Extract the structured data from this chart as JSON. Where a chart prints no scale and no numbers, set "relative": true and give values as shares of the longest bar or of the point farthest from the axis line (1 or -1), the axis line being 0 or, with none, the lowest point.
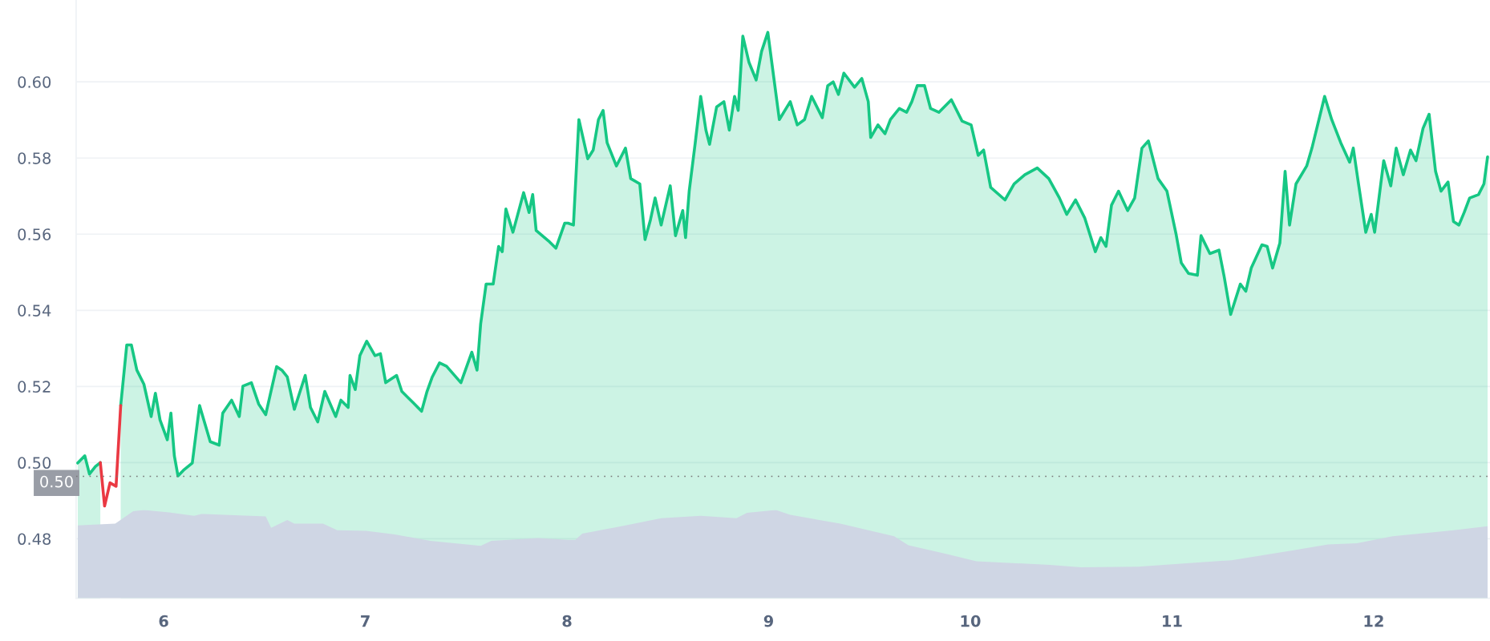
{
  "chart_data": [
    {
      "type": "line",
      "x": [
        5.574,
        5.609,
        5.632,
        5.662,
        5.686,
        5.707,
        5.734,
        5.764,
        5.787,
        5.817,
        5.84,
        5.867,
        5.902,
        5.938,
        5.959,
        5.982,
        6.018,
        6.036,
        6.053,
        6.071,
        6.098,
        6.142,
        6.178,
        6.231,
        6.275,
        6.293,
        6.337,
        6.375,
        6.393,
        6.435,
        6.471,
        6.506,
        6.56,
        6.586,
        6.613,
        6.648,
        6.702,
        6.728,
        6.764,
        6.799,
        6.853,
        6.879,
        6.915,
        6.924,
        6.95,
        6.973,
        7.007,
        7.048,
        7.075,
        7.101,
        7.155,
        7.181,
        7.234,
        7.279,
        7.306,
        7.332,
        7.368,
        7.403,
        7.474,
        7.528,
        7.554,
        7.572,
        7.599,
        7.634,
        7.661,
        7.679,
        7.697,
        7.732,
        7.785,
        7.812,
        7.83,
        7.847,
        7.909,
        7.945,
        7.989,
        8.005,
        8.032,
        8.059,
        8.103,
        8.13,
        8.156,
        8.179,
        8.199,
        8.245,
        8.29,
        8.316,
        8.361,
        8.387,
        8.414,
        8.437,
        8.467,
        8.512,
        8.538,
        8.574,
        8.588,
        8.606,
        8.636,
        8.663,
        8.689,
        8.707,
        8.742,
        8.778,
        8.805,
        8.831,
        8.849,
        8.872,
        8.902,
        8.938,
        8.965,
        8.996,
        9.027,
        9.053,
        9.107,
        9.142,
        9.178,
        9.213,
        9.266,
        9.293,
        9.32,
        9.346,
        9.373,
        9.426,
        9.462,
        9.494,
        9.506,
        9.542,
        9.577,
        9.604,
        9.648,
        9.684,
        9.71,
        9.737,
        9.773,
        9.803,
        9.844,
        9.906,
        9.959,
        10.004,
        10.039,
        10.066,
        10.101,
        10.172,
        10.217,
        10.27,
        10.332,
        10.389,
        10.442,
        10.478,
        10.522,
        10.567,
        10.62,
        10.647,
        10.673,
        10.7,
        10.735,
        10.78,
        10.815,
        10.851,
        10.883,
        10.931,
        10.975,
        11.02,
        11.046,
        11.082,
        11.126,
        11.144,
        11.188,
        11.233,
        11.259,
        11.291,
        11.339,
        11.366,
        11.393,
        11.446,
        11.472,
        11.499,
        11.535,
        11.561,
        11.583,
        11.615,
        11.668,
        11.694,
        11.757,
        11.792,
        11.837,
        11.881,
        11.899,
        11.925,
        11.961,
        11.988,
        12.005,
        12.05,
        12.085,
        12.112,
        12.147,
        12.183,
        12.21,
        12.245,
        12.275,
        12.307,
        12.334,
        12.369,
        12.396,
        12.423,
        12.449,
        12.476,
        12.52,
        12.547,
        12.565
      ],
      "series": [
        {
          "type": "area",
          "color": "#16c784",
          "values": [
            0.4999,
            0.5018,
            0.497,
            0.499,
            0.5,
            null,
            null,
            null,
            0.515,
            0.5309,
            0.5309,
            0.5243,
            0.5206,
            0.5121,
            0.5182,
            0.5112,
            0.506,
            0.513,
            0.5018,
            0.4965,
            0.498,
            0.4999,
            0.515,
            0.5055,
            0.5046,
            0.513,
            0.5164,
            0.5121,
            0.5201,
            0.521,
            0.5154,
            0.5126,
            0.5252,
            0.5243,
            0.5225,
            0.514,
            0.5229,
            0.5145,
            0.5107,
            0.5187,
            0.5121,
            0.5164,
            0.5145,
            0.5229,
            0.5192,
            0.5281,
            0.5319,
            0.5281,
            0.5286,
            0.521,
            0.5229,
            0.5187,
            0.5159,
            0.5135,
            0.5187,
            0.5225,
            0.5262,
            0.5253,
            0.521,
            0.529,
            0.5243,
            0.5365,
            0.5469,
            0.5469,
            0.5568,
            0.5554,
            0.5666,
            0.5605,
            0.5709,
            0.5657,
            0.5704,
            0.561,
            0.5582,
            0.5563,
            0.5629,
            0.5629,
            0.5624,
            0.5901,
            0.5798,
            0.5821,
            0.5901,
            0.5925,
            0.584,
            0.5779,
            0.5826,
            0.5746,
            0.5732,
            0.5586,
            0.5638,
            0.5695,
            0.5624,
            0.5727,
            0.5596,
            0.5662,
            0.5591,
            0.5713,
            0.584,
            0.5962,
            0.5873,
            0.5836,
            0.5934,
            0.5948,
            0.5873,
            0.5962,
            0.5925,
            0.612,
            0.6052,
            0.6005,
            0.608,
            0.613,
            0.6005,
            0.5901,
            0.5948,
            0.5887,
            0.5901,
            0.5962,
            0.5906,
            0.599,
            0.6,
            0.5967,
            0.6023,
            0.5986,
            0.6009,
            0.5948,
            0.5854,
            0.5887,
            0.5864,
            0.5901,
            0.593,
            0.592,
            0.5948,
            0.599,
            0.599,
            0.593,
            0.592,
            0.5953,
            0.5897,
            0.5887,
            0.5807,
            0.5821,
            0.5723,
            0.569,
            0.5732,
            0.5756,
            0.5774,
            0.5746,
            0.5695,
            0.5652,
            0.569,
            0.5643,
            0.5554,
            0.5591,
            0.5568,
            0.5676,
            0.5713,
            0.5662,
            0.5695,
            0.5826,
            0.5845,
            0.5746,
            0.5713,
            0.5601,
            0.5525,
            0.5497,
            0.5492,
            0.5596,
            0.5549,
            0.5558,
            0.5488,
            0.5389,
            0.5469,
            0.545,
            0.5511,
            0.5572,
            0.5568,
            0.5511,
            0.5577,
            0.5765,
            0.5624,
            0.5732,
            0.5779,
            0.5826,
            0.5962,
            0.5901,
            0.584,
            0.5789,
            0.5826,
            0.5732,
            0.5605,
            0.5652,
            0.5605,
            0.5793,
            0.5727,
            0.5826,
            0.5756,
            0.5821,
            0.5793,
            0.5878,
            0.5915,
            0.5765,
            0.5713,
            0.5737,
            0.5633,
            0.5624,
            0.5657,
            0.5695,
            0.5704,
            0.5732,
            0.5803
          ]
        },
        {
          "type": "line",
          "color": "#ea3943",
          "x": [
            5.686,
            5.707,
            5.734,
            5.764,
            5.787
          ],
          "values": [
            0.5,
            0.4886,
            0.4947,
            0.4938,
            0.515
          ]
        }
      ],
      "xlim": [
        5.566,
        12.577
      ],
      "xticks": [
        6,
        7,
        8,
        9,
        10,
        11,
        12
      ],
      "ylim": [
        0.4644,
        0.6215
      ],
      "yticks": [
        {
          "value": 0.48,
          "label": "0.48"
        },
        {
          "value": 0.5,
          "label": "0.50"
        },
        {
          "value": 0.52,
          "label": "0.52"
        },
        {
          "value": 0.54,
          "label": "0.54"
        },
        {
          "value": 0.56,
          "label": "0.56"
        },
        {
          "value": 0.58,
          "label": "0.58"
        },
        {
          "value": 0.6,
          "label": "0.60"
        }
      ],
      "grid": "y",
      "ref_lines": [
        {
          "axis": "y",
          "value": 0.4964,
          "label": "0.50",
          "line_style": "dotted",
          "color": "#777777"
        }
      ]
    },
    {
      "type": "area",
      "relative": true,
      "color": "#cfd6e4",
      "xlim": [
        5.566,
        12.577
      ],
      "x": [
        5.574,
        5.76,
        5.849,
        5.902,
        6.027,
        6.151,
        6.187,
        6.506,
        6.533,
        6.613,
        6.648,
        6.79,
        6.861,
        7.004,
        7.146,
        7.323,
        7.572,
        7.625,
        7.856,
        8.007,
        8.041,
        8.076,
        8.29,
        8.467,
        8.663,
        8.84,
        8.893,
        9.036,
        9.107,
        9.355,
        9.622,
        9.693,
        9.888,
        10.03,
        10.394,
        10.549,
        10.833,
        11.295,
        11.597,
        11.774,
        11.917,
        12.094,
        12.396,
        12.565
      ],
      "values": [
        0.825,
        0.845,
        0.988,
        1.0,
        0.974,
        0.934,
        0.956,
        0.927,
        0.798,
        0.886,
        0.845,
        0.845,
        0.771,
        0.764,
        0.723,
        0.65,
        0.594,
        0.65,
        0.683,
        0.663,
        0.663,
        0.732,
        0.825,
        0.907,
        0.934,
        0.907,
        0.968,
        1.0,
        0.947,
        0.845,
        0.703,
        0.601,
        0.499,
        0.418,
        0.378,
        0.35,
        0.358,
        0.431,
        0.541,
        0.61,
        0.623,
        0.703,
        0.771,
        0.816
      ]
    }
  ]
}
